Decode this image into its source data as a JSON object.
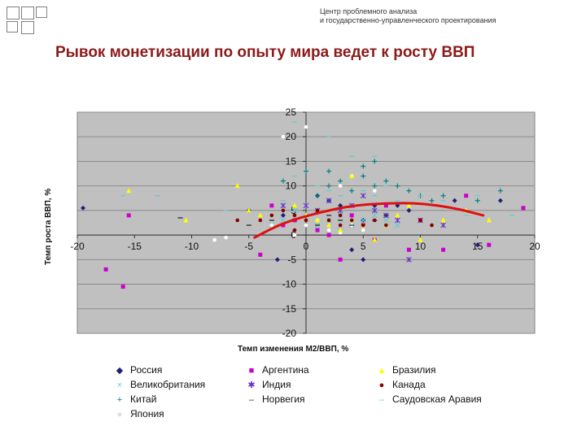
{
  "header": {
    "line1": "Центр проблемного анализа",
    "line2": "и государственно-управленческого проектирования"
  },
  "slide": {
    "title": "Рывок монетизации  по опыту мира ведет к росту ВВП"
  },
  "chart_data": {
    "type": "scatter",
    "title": "",
    "xlabel": "Темп изменения М2/ВВП, %",
    "ylabel": "Темп роста ВВП, %",
    "xlim": [
      -20,
      20
    ],
    "ylim": [
      -20,
      25
    ],
    "x_ticks": [
      -20,
      -15,
      -10,
      -5,
      0,
      5,
      10,
      15,
      20
    ],
    "y_ticks": [
      -20,
      -15,
      -10,
      -5,
      0,
      5,
      10,
      15,
      20,
      25
    ],
    "grid": true,
    "plot_background": "#C0C0C0",
    "legend_position": "bottom",
    "series": [
      {
        "name": "Россия",
        "marker": "diamond",
        "color": "#1F1F7A",
        "points": [
          [
            -19.5,
            5.5
          ],
          [
            -2.5,
            -5
          ],
          [
            -2,
            4
          ],
          [
            1,
            8
          ],
          [
            2,
            7
          ],
          [
            3,
            6
          ],
          [
            4,
            -3
          ],
          [
            5,
            -5
          ],
          [
            6,
            6
          ],
          [
            7,
            4
          ],
          [
            8,
            6
          ],
          [
            9,
            5
          ],
          [
            13,
            7
          ],
          [
            15,
            -2
          ],
          [
            17,
            7
          ],
          [
            -5,
            5
          ],
          [
            5,
            3
          ]
        ]
      },
      {
        "name": "Великобритания",
        "marker": "x",
        "color": "#66CCCC",
        "points": [
          [
            -2,
            3
          ],
          [
            -1,
            5
          ],
          [
            0,
            4
          ],
          [
            1,
            2
          ],
          [
            2,
            3
          ],
          [
            3,
            4
          ],
          [
            4,
            2
          ],
          [
            5,
            3
          ],
          [
            6,
            4
          ],
          [
            -3,
            2
          ],
          [
            3,
            1
          ],
          [
            7,
            3
          ],
          [
            8,
            2
          ]
        ]
      },
      {
        "name": "Китай",
        "marker": "plus",
        "color": "#008080",
        "points": [
          [
            1,
            8
          ],
          [
            2,
            10
          ],
          [
            3,
            11
          ],
          [
            4,
            9
          ],
          [
            5,
            12
          ],
          [
            6,
            10
          ],
          [
            7,
            11
          ],
          [
            8,
            10
          ],
          [
            9,
            9
          ],
          [
            10,
            8
          ],
          [
            11,
            7
          ],
          [
            12,
            8
          ],
          [
            0,
            13
          ],
          [
            2,
            13
          ],
          [
            5,
            14
          ],
          [
            -2,
            11
          ],
          [
            6,
            15
          ],
          [
            17,
            9
          ],
          [
            15,
            7
          ]
        ]
      },
      {
        "name": "Япония",
        "marker": "circle",
        "color": "#FFFFFF",
        "points": [
          [
            -8,
            -1
          ],
          [
            -7,
            -0.5
          ],
          [
            -3,
            2
          ],
          [
            0,
            2
          ],
          [
            1,
            3
          ],
          [
            2,
            1
          ],
          [
            3,
            0.5
          ],
          [
            4,
            2
          ],
          [
            5,
            1
          ],
          [
            -1,
            0
          ],
          [
            0,
            22
          ],
          [
            -2,
            20
          ],
          [
            3,
            10
          ],
          [
            4,
            12
          ],
          [
            6,
            9
          ]
        ]
      },
      {
        "name": "Аргентина",
        "marker": "square",
        "color": "#CC00CC",
        "points": [
          [
            -17.5,
            -7
          ],
          [
            -16,
            -10.5
          ],
          [
            -15.5,
            4
          ],
          [
            -4,
            -4
          ],
          [
            -3,
            6
          ],
          [
            -2,
            2
          ],
          [
            -1,
            3
          ],
          [
            1,
            1
          ],
          [
            2,
            0
          ],
          [
            3,
            -5
          ],
          [
            4,
            4
          ],
          [
            5,
            2
          ],
          [
            6,
            -1
          ],
          [
            7,
            6
          ],
          [
            9,
            -3
          ],
          [
            10,
            3
          ],
          [
            12,
            -3
          ],
          [
            14,
            8
          ],
          [
            16,
            -2
          ],
          [
            19,
            5.5
          ]
        ]
      },
      {
        "name": "Индия",
        "marker": "star",
        "color": "#6633CC",
        "points": [
          [
            -2,
            6
          ],
          [
            0,
            6
          ],
          [
            1,
            5
          ],
          [
            2,
            7
          ],
          [
            3,
            5
          ],
          [
            4,
            6
          ],
          [
            5,
            8
          ],
          [
            6,
            5
          ],
          [
            7,
            4
          ],
          [
            8,
            3
          ],
          [
            10,
            3
          ],
          [
            12,
            2
          ],
          [
            9,
            -5
          ]
        ]
      },
      {
        "name": "Норвегия",
        "marker": "dash",
        "color": "#333333",
        "points": [
          [
            -11,
            3.5
          ],
          [
            -5,
            2
          ],
          [
            -3,
            3
          ],
          [
            -1,
            3
          ],
          [
            1,
            2
          ],
          [
            2,
            4
          ],
          [
            3,
            3
          ],
          [
            4,
            2
          ],
          [
            6,
            3
          ],
          [
            7,
            4
          ]
        ]
      },
      {
        "name": "Бразилия",
        "marker": "triangle",
        "color": "#FFFF00",
        "points": [
          [
            -15.5,
            9
          ],
          [
            -10.5,
            3
          ],
          [
            -6,
            10
          ],
          [
            -5,
            5
          ],
          [
            -4,
            4
          ],
          [
            -1,
            6
          ],
          [
            0,
            4
          ],
          [
            1,
            3
          ],
          [
            2,
            2
          ],
          [
            3,
            1
          ],
          [
            4,
            3
          ],
          [
            5,
            2
          ],
          [
            6,
            -1
          ],
          [
            7,
            2
          ],
          [
            8,
            4
          ],
          [
            9,
            6
          ],
          [
            10,
            -1
          ],
          [
            12,
            3
          ],
          [
            14,
            5
          ],
          [
            16,
            3
          ],
          [
            4,
            12
          ]
        ]
      },
      {
        "name": "Канада",
        "marker": "circle",
        "color": "#880000",
        "points": [
          [
            -4,
            3
          ],
          [
            -3,
            4
          ],
          [
            -2,
            5
          ],
          [
            -1,
            4
          ],
          [
            0,
            3
          ],
          [
            1,
            5
          ],
          [
            2,
            3
          ],
          [
            3,
            4
          ],
          [
            4,
            3
          ],
          [
            5,
            2
          ],
          [
            6,
            3
          ],
          [
            7,
            2
          ],
          [
            10,
            3
          ],
          [
            11,
            2
          ],
          [
            -6,
            3
          ],
          [
            -1,
            1
          ],
          [
            3,
            2
          ]
        ]
      },
      {
        "name": "Саудовская Аравия",
        "marker": "dash",
        "color": "#66CCCC",
        "points": [
          [
            -16,
            8
          ],
          [
            -13,
            8
          ],
          [
            -7,
            5
          ],
          [
            -2,
            7
          ],
          [
            -1,
            12
          ],
          [
            1,
            10
          ],
          [
            2,
            9
          ],
          [
            3,
            8
          ],
          [
            5,
            9
          ],
          [
            6,
            8
          ],
          [
            7,
            10
          ],
          [
            8,
            7
          ],
          [
            10,
            8
          ],
          [
            12,
            7
          ],
          [
            14,
            4
          ],
          [
            15,
            8
          ],
          [
            -1,
            23
          ],
          [
            2,
            20
          ],
          [
            4,
            16
          ],
          [
            6,
            16
          ],
          [
            18,
            4
          ]
        ]
      }
    ],
    "trend": {
      "color": "#E01010",
      "points": [
        [
          -4.5,
          -0.5
        ],
        [
          -2,
          2.5
        ],
        [
          1,
          4.5
        ],
        [
          4,
          6
        ],
        [
          7,
          6.5
        ],
        [
          10,
          6.5
        ],
        [
          13,
          5.5
        ],
        [
          15.5,
          4
        ]
      ]
    }
  }
}
